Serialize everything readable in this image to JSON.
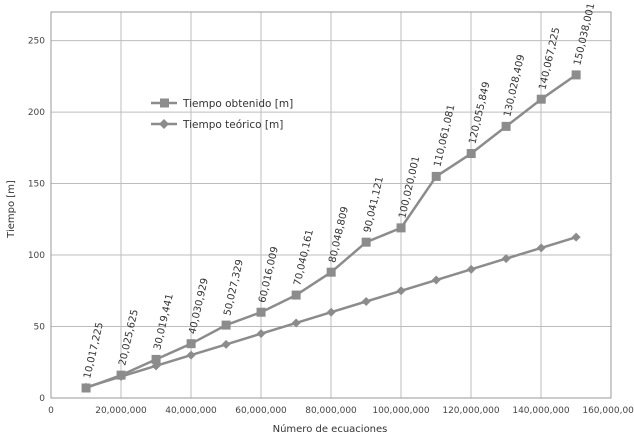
{
  "chart_data": {
    "type": "line",
    "xlabel": "Número de ecuaciones",
    "ylabel": "Tiempo [m]",
    "xlim": [
      0,
      160000000
    ],
    "ylim": [
      0,
      270
    ],
    "x_ticks": [
      0,
      20000000,
      40000000,
      60000000,
      80000000,
      100000000,
      120000000,
      140000000,
      160000000
    ],
    "x_tick_labels": [
      "0",
      "20,000,000",
      "40,000,000",
      "60,000,000",
      "80,000,000",
      "100,000,000",
      "120,000,000",
      "140,000,000",
      "160,000,000"
    ],
    "y_ticks": [
      0,
      50,
      100,
      150,
      200,
      250
    ],
    "y_tick_labels": [
      "0",
      "50",
      "100",
      "150",
      "200",
      "250"
    ],
    "grid": true,
    "legend_position": "top-left",
    "x": [
      10017225,
      20025625,
      30019441,
      40030929,
      50027329,
      60016009,
      70040161,
      80048809,
      90041121,
      100020001,
      110061081,
      120055849,
      130028409,
      140067225,
      150038001
    ],
    "data_labels": [
      "10,017,225",
      "20,025,625",
      "30,019,441",
      "40,030,929",
      "50,027,329",
      "60,016,009",
      "70,040,161",
      "80,048,809",
      "90,041,121",
      "100,020,001",
      "110,061,081",
      "120,055,849",
      "130,028,409",
      "140,067,225",
      "150,038,001"
    ],
    "series": [
      {
        "name": "Tiempo obtenido [m]",
        "marker": "square",
        "color": "#8c8c8c",
        "values": [
          7,
          16,
          27,
          38,
          51,
          60,
          72,
          88,
          109,
          119,
          155,
          171,
          190,
          209,
          226
        ]
      },
      {
        "name": "Tiempo teórico [m]",
        "marker": "diamond",
        "color": "#8c8c8c",
        "values": [
          7.5,
          15,
          22.5,
          30,
          37.5,
          45,
          52.5,
          60,
          67.5,
          75,
          82.5,
          90,
          97.5,
          105,
          112.5
        ]
      }
    ]
  }
}
